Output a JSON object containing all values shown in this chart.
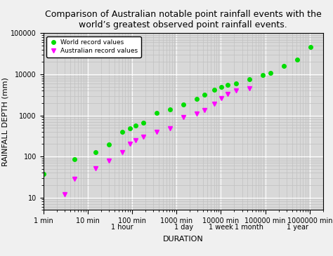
{
  "title": "Comparison of Australian notable point rainfall events with the\nworld’s greatest observed point rainfall events.",
  "xlabel": "DURATION",
  "ylabel": "RAINFALL DEPTH (mm)",
  "xlim_min": 1,
  "xlim_max": 2000000,
  "ylim_min": 5,
  "ylim_max": 100000,
  "world_color": "#00dd00",
  "aus_color": "#ff00ff",
  "world_x": [
    1,
    5,
    15,
    30,
    60,
    90,
    120,
    180,
    360,
    720,
    1440,
    2880,
    4320,
    7200,
    10080,
    14400,
    21600,
    43200,
    86400,
    129600,
    259200,
    525600,
    1051200
  ],
  "world_y": [
    38,
    85,
    126,
    198,
    401,
    480,
    559,
    660,
    1144,
    1400,
    1870,
    2500,
    3240,
    4200,
    4869,
    5500,
    6083,
    7500,
    9800,
    11000,
    16000,
    22475,
    47000
  ],
  "aus_x": [
    3,
    5,
    15,
    30,
    60,
    90,
    120,
    180,
    360,
    720,
    1440,
    2880,
    4320,
    7200,
    10080,
    14400,
    21600,
    43200
  ],
  "aus_y": [
    12,
    28,
    52,
    80,
    127,
    200,
    245,
    300,
    400,
    480,
    900,
    1100,
    1350,
    1900,
    2600,
    3300,
    4000,
    4600
  ],
  "xtick_positions": [
    1,
    10,
    100,
    1000,
    10000,
    100000,
    1000000
  ],
  "xtick_labels": [
    "1 min",
    "10 min",
    "100 min",
    "1000 min",
    "10000 min",
    "100000 min",
    "1000000 min"
  ],
  "xtick2_positions": [
    60,
    1440,
    10080,
    43200,
    525600
  ],
  "xtick2_labels": [
    "1 hour",
    "1 day",
    "1 week",
    "1 month",
    "1 year"
  ],
  "background_color": "#d8d8d8",
  "grid_major_color": "#ffffff",
  "grid_minor_color": "#c0c0c0",
  "fig_color": "#f0f0f0",
  "title_fontsize": 9,
  "axis_label_fontsize": 8,
  "tick_fontsize": 7
}
